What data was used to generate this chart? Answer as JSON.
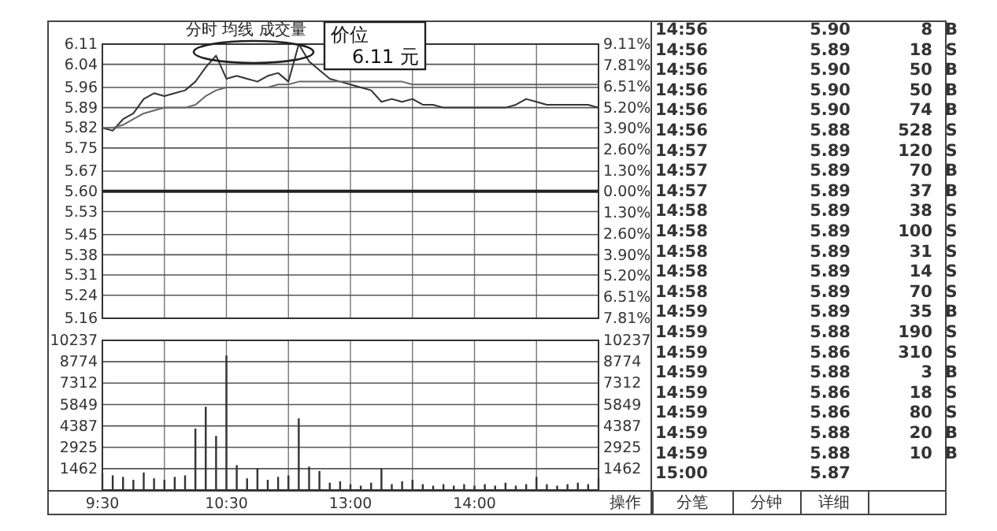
{
  "chart_data": [
    {
      "type": "line",
      "title": "分时 均线 成交量",
      "categories": [
        null,
        null,
        null,
        null,
        null,
        null,
        null,
        null,
        null,
        null,
        null,
        null,
        null,
        null,
        null,
        null,
        null,
        null,
        null,
        null,
        null,
        null,
        null,
        null,
        null,
        null,
        null,
        null,
        null,
        null,
        null,
        null,
        null,
        null,
        null,
        null,
        null,
        null,
        null,
        null,
        null,
        null,
        null,
        null,
        null,
        null,
        null,
        null,
        null
      ],
      "ylim": [
        5.16,
        6.11
      ],
      "yticks": [
        6.11,
        6.04,
        5.96,
        5.89,
        5.82,
        5.75,
        5.67,
        {
          "value": 5.6,
          "label": "5.60"
        },
        5.53,
        5.45,
        5.38,
        5.31,
        5.24,
        5.16
      ],
      "y2lim": [
        -7.81,
        9.11
      ],
      "y2ticks": [
        {
          "value": 9.11,
          "label": "9.11%"
        },
        {
          "value": 7.81,
          "label": "7.81%"
        },
        {
          "value": 6.51,
          "label": "6.51%"
        },
        {
          "value": 5.2,
          "label": "5.20%"
        },
        {
          "value": 3.9,
          "label": "3.90%"
        },
        {
          "value": 2.6,
          "label": "2.60%"
        },
        {
          "value": 1.3,
          "label": "1.30%"
        },
        {
          "value": 0,
          "label": "0.00%"
        },
        {
          "value": -1.3,
          "label": "1.30%"
        },
        {
          "value": -2.6,
          "label": "2.60%"
        },
        {
          "value": -3.9,
          "label": "3.90%"
        },
        {
          "value": -5.2,
          "label": "5.20%"
        },
        {
          "value": -6.51,
          "label": "6.51%"
        },
        {
          "value": -7.81,
          "label": "7.81%"
        }
      ],
      "grid": true,
      "marker": "none",
      "ref_lines": [
        {
          "axis": "y",
          "value": 5.6
        }
      ],
      "annotations": [
        "价位 6.11 元"
      ],
      "series": [
        {
          "color": "#333333",
          "values": [
            5.82,
            5.81,
            5.85,
            5.87,
            5.92,
            5.94,
            5.93,
            5.94,
            5.95,
            5.98,
            6.03,
            6.07,
            5.99,
            6.0,
            5.99,
            5.98,
            6.0,
            6.01,
            5.98,
            6.11,
            6.05,
            6.02,
            5.99,
            5.98,
            5.97,
            5.96,
            5.95,
            5.91,
            5.92,
            5.91,
            5.92,
            5.9,
            5.9,
            5.89,
            5.89,
            5.89,
            5.89,
            5.89,
            5.89,
            5.89,
            5.9,
            5.92,
            5.91,
            5.9,
            5.9,
            5.9,
            5.9,
            5.9,
            5.89
          ]
        },
        {
          "color": "#666666",
          "values": [
            5.82,
            5.82,
            5.83,
            5.85,
            5.87,
            5.88,
            5.89,
            5.89,
            5.89,
            5.9,
            5.93,
            5.95,
            5.96,
            5.96,
            5.96,
            5.96,
            5.96,
            5.97,
            5.97,
            5.98,
            5.98,
            5.98,
            5.98,
            5.98,
            5.98,
            5.98,
            5.98,
            5.98,
            5.98,
            5.98,
            5.97,
            5.97,
            5.97,
            5.97,
            5.97,
            5.97,
            5.97,
            5.97,
            5.97,
            5.97,
            5.97,
            5.97,
            5.97,
            5.97,
            5.97,
            5.97,
            5.97,
            5.97,
            5.97
          ]
        }
      ]
    },
    {
      "type": "bar",
      "categories": [
        "9:30",
        null,
        null,
        null,
        null,
        null,
        null,
        null,
        null,
        null,
        null,
        null,
        "10:30",
        null,
        null,
        null,
        null,
        null,
        null,
        null,
        null,
        null,
        null,
        null,
        "13:00",
        null,
        null,
        null,
        null,
        null,
        null,
        null,
        null,
        null,
        null,
        null,
        "14:00",
        null,
        null,
        null,
        null,
        null,
        null,
        null,
        null,
        null,
        null,
        null,
        null
      ],
      "ylim": [
        0,
        10237
      ],
      "yticks": [
        {
          "value": 0,
          "label": null
        },
        1462,
        2925,
        4387,
        5849,
        7312,
        8774,
        10237
      ],
      "y2lim": [
        0,
        10237
      ],
      "y2ticks": [
        {
          "value": 0,
          "label": null
        },
        1462,
        2925,
        4387,
        5849,
        7312,
        8774,
        10237
      ],
      "grid": true,
      "color": "#333333",
      "values": [
        1200,
        1000,
        900,
        700,
        1200,
        800,
        700,
        900,
        1000,
        4200,
        5700,
        3700,
        9200,
        1700,
        800,
        1500,
        700,
        900,
        1000,
        4900,
        1600,
        1300,
        500,
        600,
        400,
        300,
        500,
        1500,
        400,
        600,
        700,
        400,
        300,
        400,
        300,
        400,
        300,
        400,
        300,
        500,
        300,
        400,
        900,
        400,
        300,
        400,
        500,
        400,
        800
      ]
    },
    {
      "type": "other",
      "annotations": [
        "14:56 5.90 8 B",
        "14:56 5.89 18 S",
        "14:56 5.90 50 B",
        "14:56 5.90 50 B",
        "14:56 5.90 74 B",
        "14:56 5.88 528 S",
        "14:57 5.89 120 S",
        "14:57 5.89 70 B",
        "14:57 5.89 37 B",
        "14:58 5.89 38 S",
        "14:58 5.89 100 S",
        "14:58 5.89 31 S",
        "14:58 5.89 14 S",
        "14:58 5.89 70 S",
        "14:59 5.89 35 B",
        "14:59 5.88 190 S",
        "14:59 5.86 310 S",
        "14:59 5.88 3 B",
        "14:59 5.86 18 S",
        "14:59 5.86 80 S",
        "14:59 5.88 20 B",
        "14:59 5.88 10 B",
        "15:00 5.87"
      ]
    },
    {
      "type": "other",
      "annotations": [
        "操作",
        "分笔",
        "分钟",
        "详细"
      ]
    }
  ]
}
